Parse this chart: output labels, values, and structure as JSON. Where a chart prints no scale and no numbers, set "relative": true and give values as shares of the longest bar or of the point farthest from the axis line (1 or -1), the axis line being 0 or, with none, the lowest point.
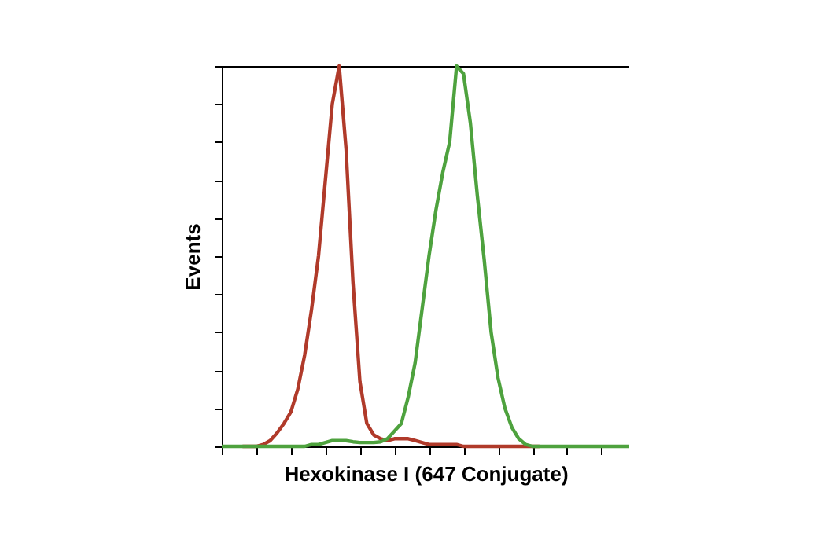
{
  "chart_data": {
    "type": "line",
    "relative": true,
    "xlabel": "Hexokinase I (647 Conjugate)",
    "ylabel": "Events",
    "grid": false,
    "legend": false,
    "marker": "none",
    "line_style": "solid",
    "categories": [
      null,
      null,
      null,
      null,
      null,
      null,
      null,
      null,
      null,
      null,
      null,
      null,
      null,
      null,
      null,
      null,
      null,
      null,
      null,
      null,
      null,
      null,
      null,
      null,
      null,
      null,
      null,
      null,
      null,
      null,
      null,
      null,
      null,
      null,
      null,
      null,
      null,
      null,
      null,
      null,
      null,
      null,
      null,
      null,
      null,
      null,
      null,
      null,
      null,
      null,
      null,
      null,
      null,
      null,
      null,
      null,
      null,
      null,
      null,
      null
    ],
    "series": [
      {
        "color": "#b03a2a",
        "values": [
          null,
          null,
          null,
          0,
          0,
          0,
          0.005,
          0.015,
          0.035,
          0.06,
          0.09,
          0.15,
          0.24,
          0.36,
          0.5,
          0.7,
          0.9,
          1.0,
          0.78,
          0.43,
          0.17,
          0.06,
          0.03,
          0.02,
          0.015,
          0.02,
          0.02,
          0.02,
          0.015,
          0.01,
          0.005,
          0.005,
          0.005,
          0.005,
          0.005,
          0,
          0,
          0,
          0,
          0,
          0,
          0,
          0,
          0,
          0,
          0,
          0,
          null,
          null,
          null,
          null,
          null,
          null,
          null,
          null,
          null,
          null,
          null,
          null,
          null
        ]
      },
      {
        "color": "#4ea23e",
        "values": [
          0,
          0,
          0,
          0,
          0,
          0,
          0,
          0,
          0,
          0,
          0,
          0,
          0,
          0.005,
          0.005,
          0.01,
          0.015,
          0.015,
          0.015,
          0.012,
          0.01,
          0.01,
          0.01,
          0.012,
          0.02,
          0.04,
          0.06,
          0.13,
          0.22,
          0.36,
          0.5,
          0.62,
          0.72,
          0.8,
          1.0,
          0.98,
          0.85,
          0.66,
          0.49,
          0.3,
          0.18,
          0.1,
          0.05,
          0.02,
          0.005,
          0,
          0,
          0,
          0,
          0,
          0,
          0,
          0,
          0,
          0,
          0,
          0,
          0,
          0,
          0
        ]
      }
    ]
  }
}
